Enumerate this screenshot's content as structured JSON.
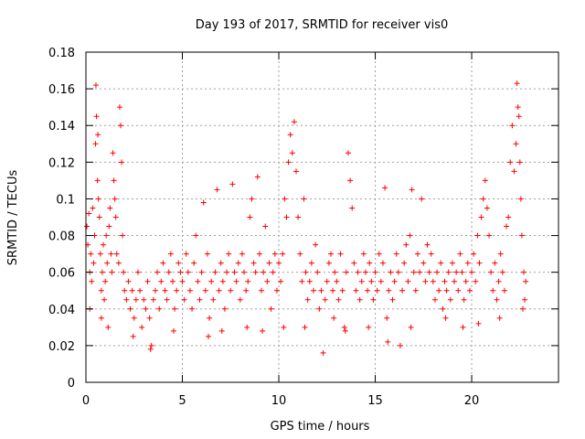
{
  "chart_data": {
    "type": "scatter",
    "title": "Day 193 of 2017, SRMTID for receiver vis0",
    "xlabel": "GPS time / hours",
    "ylabel": "SRMTID / TECUs",
    "xlim": [
      0,
      24.5
    ],
    "ylim": [
      0,
      0.18
    ],
    "xticks": [
      0,
      5,
      10,
      15,
      20
    ],
    "xtick_labels": [
      "0",
      "5",
      "10",
      "15",
      "20"
    ],
    "yticks": [
      0,
      0.02,
      0.04,
      0.06,
      0.08,
      0.1,
      0.12,
      0.14,
      0.16,
      0.18
    ],
    "ytick_labels": [
      "0",
      "0.02",
      "0.04",
      "0.06",
      "0.08",
      "0.1",
      "0.12",
      "0.14",
      "0.16",
      "0.18"
    ],
    "grid": true,
    "marker": "+",
    "series_color": "#ff0000",
    "x_span": [
      0,
      22.8
    ],
    "points": [
      [
        0.05,
        0.085
      ],
      [
        0.1,
        0.075
      ],
      [
        0.15,
        0.092
      ],
      [
        0.2,
        0.06
      ],
      [
        0.25,
        0.07
      ],
      [
        0.3,
        0.055
      ],
      [
        0.35,
        0.095
      ],
      [
        0.4,
        0.065
      ],
      [
        0.45,
        0.08
      ],
      [
        0.5,
        0.13
      ],
      [
        0.52,
        0.162
      ],
      [
        0.55,
        0.145
      ],
      [
        0.6,
        0.11
      ],
      [
        0.62,
        0.135
      ],
      [
        0.65,
        0.1
      ],
      [
        0.7,
        0.09
      ],
      [
        0.75,
        0.07
      ],
      [
        0.8,
        0.05
      ],
      [
        0.85,
        0.06
      ],
      [
        0.9,
        0.075
      ],
      [
        0.95,
        0.045
      ],
      [
        1.0,
        0.055
      ],
      [
        1.05,
        0.08
      ],
      [
        1.1,
        0.065
      ],
      [
        1.2,
        0.085
      ],
      [
        1.25,
        0.095
      ],
      [
        1.3,
        0.07
      ],
      [
        1.35,
        0.06
      ],
      [
        1.4,
        0.125
      ],
      [
        1.45,
        0.11
      ],
      [
        1.5,
        0.1
      ],
      [
        1.55,
        0.09
      ],
      [
        1.6,
        0.07
      ],
      [
        1.7,
        0.065
      ],
      [
        1.75,
        0.15
      ],
      [
        1.8,
        0.14
      ],
      [
        1.85,
        0.12
      ],
      [
        1.9,
        0.08
      ],
      [
        1.95,
        0.06
      ],
      [
        2.0,
        0.05
      ],
      [
        2.1,
        0.045
      ],
      [
        2.2,
        0.055
      ],
      [
        2.3,
        0.04
      ],
      [
        2.4,
        0.05
      ],
      [
        2.5,
        0.035
      ],
      [
        2.6,
        0.045
      ],
      [
        2.7,
        0.06
      ],
      [
        2.8,
        0.05
      ],
      [
        2.9,
        0.03
      ],
      [
        3.0,
        0.045
      ],
      [
        3.1,
        0.04
      ],
      [
        3.2,
        0.055
      ],
      [
        3.3,
        0.035
      ],
      [
        3.4,
        0.02
      ],
      [
        3.5,
        0.045
      ],
      [
        3.6,
        0.05
      ],
      [
        3.7,
        0.06
      ],
      [
        3.8,
        0.04
      ],
      [
        3.9,
        0.055
      ],
      [
        4.0,
        0.065
      ],
      [
        4.1,
        0.05
      ],
      [
        4.2,
        0.045
      ],
      [
        4.3,
        0.06
      ],
      [
        4.4,
        0.07
      ],
      [
        4.5,
        0.055
      ],
      [
        4.6,
        0.04
      ],
      [
        4.7,
        0.05
      ],
      [
        4.8,
        0.065
      ],
      [
        4.9,
        0.06
      ],
      [
        5.0,
        0.055
      ],
      [
        5.1,
        0.045
      ],
      [
        5.2,
        0.07
      ],
      [
        5.3,
        0.06
      ],
      [
        5.4,
        0.05
      ],
      [
        5.5,
        0.04
      ],
      [
        5.6,
        0.065
      ],
      [
        5.7,
        0.08
      ],
      [
        5.8,
        0.055
      ],
      [
        5.9,
        0.045
      ],
      [
        6.0,
        0.06
      ],
      [
        6.1,
        0.098
      ],
      [
        6.2,
        0.05
      ],
      [
        6.3,
        0.07
      ],
      [
        6.4,
        0.035
      ],
      [
        6.5,
        0.055
      ],
      [
        6.6,
        0.045
      ],
      [
        6.7,
        0.06
      ],
      [
        6.8,
        0.105
      ],
      [
        6.9,
        0.05
      ],
      [
        7.0,
        0.065
      ],
      [
        7.1,
        0.055
      ],
      [
        7.2,
        0.04
      ],
      [
        7.3,
        0.06
      ],
      [
        7.4,
        0.07
      ],
      [
        7.5,
        0.05
      ],
      [
        7.6,
        0.108
      ],
      [
        7.7,
        0.06
      ],
      [
        7.8,
        0.055
      ],
      [
        7.9,
        0.065
      ],
      [
        8.0,
        0.045
      ],
      [
        8.1,
        0.07
      ],
      [
        8.2,
        0.06
      ],
      [
        8.3,
        0.05
      ],
      [
        8.4,
        0.055
      ],
      [
        8.5,
        0.09
      ],
      [
        8.6,
        0.1
      ],
      [
        8.7,
        0.065
      ],
      [
        8.8,
        0.06
      ],
      [
        8.9,
        0.112
      ],
      [
        9.0,
        0.07
      ],
      [
        9.1,
        0.05
      ],
      [
        9.2,
        0.06
      ],
      [
        9.3,
        0.085
      ],
      [
        9.4,
        0.055
      ],
      [
        9.5,
        0.065
      ],
      [
        9.6,
        0.04
      ],
      [
        9.7,
        0.06
      ],
      [
        9.8,
        0.07
      ],
      [
        9.9,
        0.05
      ],
      [
        10.0,
        0.065
      ],
      [
        10.1,
        0.055
      ],
      [
        10.2,
        0.07
      ],
      [
        10.3,
        0.1
      ],
      [
        10.4,
        0.09
      ],
      [
        10.5,
        0.12
      ],
      [
        10.6,
        0.135
      ],
      [
        10.7,
        0.125
      ],
      [
        10.8,
        0.142
      ],
      [
        10.9,
        0.115
      ],
      [
        11.0,
        0.09
      ],
      [
        11.1,
        0.07
      ],
      [
        11.2,
        0.055
      ],
      [
        11.3,
        0.1
      ],
      [
        11.4,
        0.06
      ],
      [
        11.5,
        0.045
      ],
      [
        11.6,
        0.055
      ],
      [
        11.7,
        0.065
      ],
      [
        11.8,
        0.05
      ],
      [
        11.9,
        0.075
      ],
      [
        12.0,
        0.06
      ],
      [
        12.1,
        0.04
      ],
      [
        12.2,
        0.05
      ],
      [
        12.3,
        0.016
      ],
      [
        12.4,
        0.045
      ],
      [
        12.5,
        0.055
      ],
      [
        12.6,
        0.065
      ],
      [
        12.7,
        0.07
      ],
      [
        12.8,
        0.05
      ],
      [
        12.9,
        0.06
      ],
      [
        13.0,
        0.055
      ],
      [
        13.1,
        0.045
      ],
      [
        13.2,
        0.07
      ],
      [
        13.3,
        0.05
      ],
      [
        13.4,
        0.03
      ],
      [
        13.5,
        0.06
      ],
      [
        13.6,
        0.125
      ],
      [
        13.7,
        0.11
      ],
      [
        13.8,
        0.095
      ],
      [
        13.9,
        0.065
      ],
      [
        14.0,
        0.05
      ],
      [
        14.1,
        0.06
      ],
      [
        14.2,
        0.045
      ],
      [
        14.3,
        0.055
      ],
      [
        14.4,
        0.07
      ],
      [
        14.5,
        0.06
      ],
      [
        14.6,
        0.05
      ],
      [
        14.7,
        0.065
      ],
      [
        14.8,
        0.055
      ],
      [
        14.9,
        0.045
      ],
      [
        15.0,
        0.06
      ],
      [
        15.1,
        0.05
      ],
      [
        15.2,
        0.07
      ],
      [
        15.3,
        0.055
      ],
      [
        15.4,
        0.065
      ],
      [
        15.5,
        0.106
      ],
      [
        15.6,
        0.035
      ],
      [
        15.7,
        0.05
      ],
      [
        15.8,
        0.06
      ],
      [
        15.9,
        0.045
      ],
      [
        16.0,
        0.055
      ],
      [
        16.1,
        0.07
      ],
      [
        16.2,
        0.06
      ],
      [
        16.3,
        0.02
      ],
      [
        16.4,
        0.05
      ],
      [
        16.5,
        0.065
      ],
      [
        16.6,
        0.075
      ],
      [
        16.7,
        0.055
      ],
      [
        16.8,
        0.08
      ],
      [
        16.9,
        0.105
      ],
      [
        17.0,
        0.06
      ],
      [
        17.1,
        0.05
      ],
      [
        17.2,
        0.07
      ],
      [
        17.3,
        0.06
      ],
      [
        17.4,
        0.1
      ],
      [
        17.5,
        0.065
      ],
      [
        17.6,
        0.055
      ],
      [
        17.7,
        0.075
      ],
      [
        17.8,
        0.06
      ],
      [
        17.9,
        0.07
      ],
      [
        18.0,
        0.055
      ],
      [
        18.1,
        0.045
      ],
      [
        18.2,
        0.06
      ],
      [
        18.3,
        0.05
      ],
      [
        18.4,
        0.065
      ],
      [
        18.5,
        0.04
      ],
      [
        18.6,
        0.055
      ],
      [
        18.7,
        0.05
      ],
      [
        18.8,
        0.06
      ],
      [
        18.9,
        0.045
      ],
      [
        19.0,
        0.065
      ],
      [
        19.1,
        0.055
      ],
      [
        19.2,
        0.06
      ],
      [
        19.3,
        0.05
      ],
      [
        19.4,
        0.07
      ],
      [
        19.5,
        0.06
      ],
      [
        19.6,
        0.045
      ],
      [
        19.7,
        0.055
      ],
      [
        19.8,
        0.065
      ],
      [
        19.9,
        0.05
      ],
      [
        20.0,
        0.06
      ],
      [
        20.1,
        0.07
      ],
      [
        20.2,
        0.055
      ],
      [
        20.3,
        0.08
      ],
      [
        20.4,
        0.065
      ],
      [
        20.5,
        0.09
      ],
      [
        20.6,
        0.1
      ],
      [
        20.7,
        0.11
      ],
      [
        20.8,
        0.095
      ],
      [
        20.9,
        0.08
      ],
      [
        21.0,
        0.06
      ],
      [
        21.1,
        0.05
      ],
      [
        21.2,
        0.065
      ],
      [
        21.3,
        0.045
      ],
      [
        21.4,
        0.055
      ],
      [
        21.5,
        0.07
      ],
      [
        21.6,
        0.06
      ],
      [
        21.7,
        0.05
      ],
      [
        21.8,
        0.085
      ],
      [
        21.9,
        0.09
      ],
      [
        22.0,
        0.12
      ],
      [
        22.1,
        0.14
      ],
      [
        22.2,
        0.115
      ],
      [
        22.3,
        0.13
      ],
      [
        22.35,
        0.163
      ],
      [
        22.4,
        0.15
      ],
      [
        22.45,
        0.145
      ],
      [
        22.5,
        0.12
      ],
      [
        22.55,
        0.1
      ],
      [
        22.6,
        0.08
      ],
      [
        22.7,
        0.06
      ],
      [
        22.75,
        0.045
      ],
      [
        22.8,
        0.055
      ],
      [
        0.2,
        0.04
      ],
      [
        0.8,
        0.035
      ],
      [
        1.15,
        0.03
      ],
      [
        2.45,
        0.025
      ],
      [
        3.35,
        0.018
      ],
      [
        4.55,
        0.028
      ],
      [
        6.35,
        0.025
      ],
      [
        7.05,
        0.028
      ],
      [
        8.35,
        0.03
      ],
      [
        9.15,
        0.028
      ],
      [
        10.25,
        0.03
      ],
      [
        11.35,
        0.03
      ],
      [
        12.85,
        0.035
      ],
      [
        13.45,
        0.028
      ],
      [
        14.65,
        0.03
      ],
      [
        15.65,
        0.022
      ],
      [
        16.85,
        0.03
      ],
      [
        18.65,
        0.035
      ],
      [
        19.55,
        0.03
      ],
      [
        20.35,
        0.032
      ],
      [
        21.45,
        0.035
      ],
      [
        22.65,
        0.04
      ]
    ]
  }
}
